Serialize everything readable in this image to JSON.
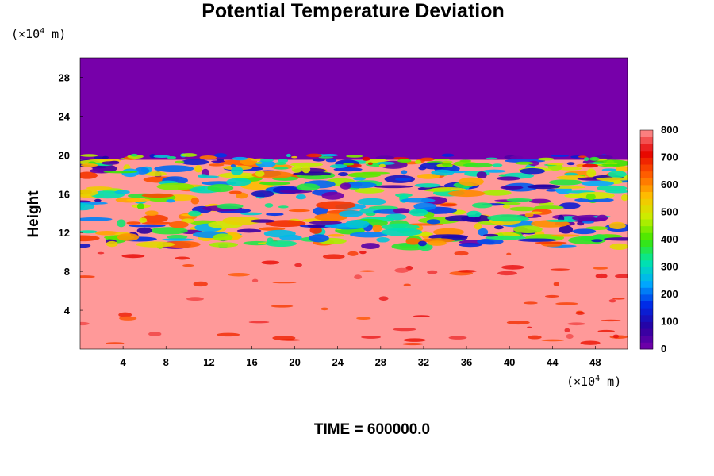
{
  "chart_data": {
    "type": "heatmap",
    "title": "Potential Temperature Deviation",
    "ylabel": "Height",
    "y_unit": "×10^4 m",
    "x_unit": "×10^4 m",
    "x_ticks": [
      4,
      8,
      12,
      16,
      20,
      24,
      28,
      32,
      36,
      40,
      44,
      48
    ],
    "y_ticks": [
      4,
      8,
      12,
      16,
      20,
      24,
      28
    ],
    "xlim": [
      0,
      51
    ],
    "ylim": [
      0,
      30
    ],
    "colorbar": {
      "ticks": [
        0,
        100,
        200,
        300,
        400,
        500,
        600,
        700,
        800
      ],
      "range": [
        0,
        800
      ]
    },
    "layers": [
      {
        "from_height": 0,
        "to_height": 10.5,
        "approx_value": 780
      },
      {
        "from_height": 10.5,
        "to_height": 19.5,
        "approx_value": "mixed 0-800"
      },
      {
        "from_height": 19.5,
        "to_height": 30,
        "approx_value": 0
      }
    ],
    "footer": "TIME = 600000.0"
  },
  "colors": {
    "high": "#ff9999",
    "low": "#7700aa"
  },
  "labels": {
    "unit_prefix": "(×10",
    "unit_exp": "4",
    "unit_suffix": " m)"
  }
}
